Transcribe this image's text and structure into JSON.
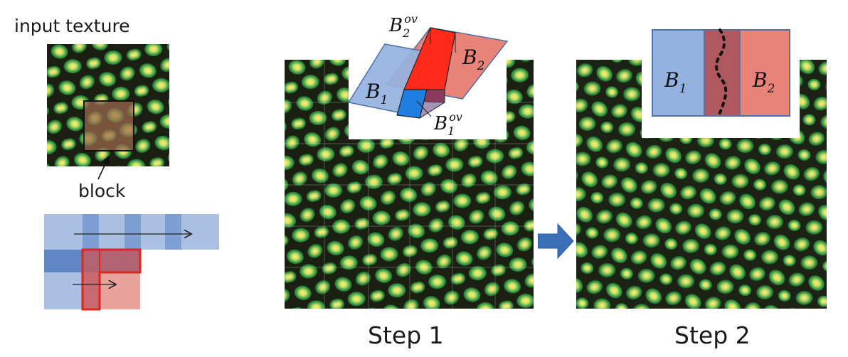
{
  "left": {
    "input_texture_label": "input texture",
    "block_label": "block"
  },
  "step1": {
    "label": "Step 1",
    "b1": "B",
    "b1_sub": "1",
    "b2": "B",
    "b2_sub": "2",
    "b2ov": "B",
    "b2ov_sub": "2",
    "b2ov_sup": "ov",
    "b1ov": "B",
    "b1ov_sub": "1",
    "b1ov_sup": "ov"
  },
  "step2": {
    "label": "Step 2",
    "b1": "B",
    "b1_sub": "1",
    "b2": "B",
    "b2_sub": "2"
  },
  "colors": {
    "block_blue": "#8faedb",
    "block_blue_dark": "#5b82bf",
    "block_red": "#e8837a",
    "overlap_red": "#ff2a1a",
    "overlap_blue": "#1f7fe0",
    "cut_overlap": "#b0585f",
    "texture_dark": "#1b2012",
    "texture_green": "#2f8f3a",
    "texture_yellow": "#d8e86a",
    "arrow_blue": "#3a6fb8"
  }
}
